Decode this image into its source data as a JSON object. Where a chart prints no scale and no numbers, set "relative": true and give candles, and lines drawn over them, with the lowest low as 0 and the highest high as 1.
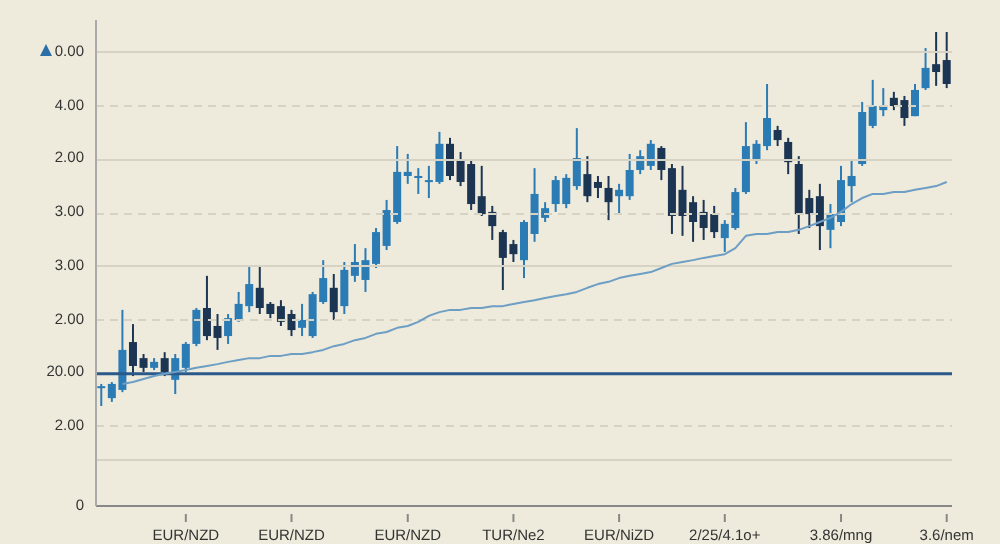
{
  "chart_data": {
    "type": "candlestick",
    "categories": [
      null,
      null,
      null,
      null,
      null,
      null,
      null,
      null,
      "EUR/NZD",
      null,
      null,
      null,
      null,
      null,
      null,
      null,
      null,
      null,
      "EUR/NZD",
      null,
      null,
      null,
      null,
      null,
      null,
      null,
      null,
      null,
      null,
      "EUR/NZD",
      null,
      null,
      null,
      null,
      null,
      null,
      null,
      null,
      null,
      "TUR/Ne2",
      null,
      null,
      null,
      null,
      null,
      null,
      null,
      null,
      null,
      "EUR/NiZD",
      null,
      null,
      null,
      null,
      null,
      null,
      null,
      null,
      null,
      "2/25/4.1o+",
      null,
      null,
      null,
      null,
      null,
      null,
      null,
      null,
      null,
      null,
      "3.86/mng",
      null,
      null,
      null,
      null,
      null,
      null,
      null,
      null,
      null,
      "3.6/nem"
    ],
    "relative": true,
    "annotations": [
      "0.00",
      "4.00",
      "2.00",
      "3.00",
      "3.00",
      "2.00",
      "20.00",
      "2.00",
      "0"
    ],
    "grid": "y",
    "series": [
      {
        "ohlc": [
          [
            0.048,
            0.059,
            0,
            0.053
          ],
          [
            0.021,
            0.064,
            0.011,
            0.059
          ],
          [
            0.043,
            0.257,
            0.037,
            0.15
          ],
          [
            0.171,
            0.219,
            0.08,
            0.107
          ],
          [
            0.128,
            0.139,
            0.091,
            0.102
          ],
          [
            0.102,
            0.128,
            0.096,
            0.118
          ],
          [
            0.128,
            0.144,
            0.08,
            0.091
          ],
          [
            0.07,
            0.139,
            0.032,
            0.128
          ],
          [
            0.102,
            0.171,
            0.091,
            0.166
          ],
          [
            0.166,
            0.262,
            0.16,
            0.257
          ],
          [
            0.262,
            0.348,
            0.176,
            0.187
          ],
          [
            0.214,
            0.246,
            0.15,
            0.182
          ],
          [
            0.187,
            0.246,
            0.166,
            0.235
          ],
          [
            0.23,
            0.305,
            0.225,
            0.273
          ],
          [
            0.267,
            0.374,
            0.251,
            0.326
          ],
          [
            0.316,
            0.374,
            0.246,
            0.262
          ],
          [
            0.273,
            0.278,
            0.235,
            0.246
          ],
          [
            0.267,
            0.283,
            0.214,
            0.225
          ],
          [
            0.246,
            0.257,
            0.187,
            0.203
          ],
          [
            0.209,
            0.273,
            0.187,
            0.23
          ],
          [
            0.187,
            0.305,
            0.182,
            0.299
          ],
          [
            0.278,
            0.39,
            0.273,
            0.342
          ],
          [
            0.316,
            0.353,
            0.23,
            0.251
          ],
          [
            0.267,
            0.385,
            0.246,
            0.364
          ],
          [
            0.348,
            0.433,
            0.332,
            0.385
          ],
          [
            0.337,
            0.422,
            0.305,
            0.39
          ],
          [
            0.38,
            0.476,
            0.369,
            0.465
          ],
          [
            0.428,
            0.551,
            0.417,
            0.524
          ],
          [
            0.492,
            0.695,
            0.487,
            0.626
          ],
          [
            0.615,
            0.674,
            0.594,
            0.626
          ],
          [
            0.61,
            0.636,
            0.567,
            0.615
          ],
          [
            0.599,
            0.642,
            0.556,
            0.604
          ],
          [
            0.599,
            0.733,
            0.594,
            0.701
          ],
          [
            0.701,
            0.717,
            0.604,
            0.615
          ],
          [
            0.658,
            0.679,
            0.588,
            0.599
          ],
          [
            0.647,
            0.658,
            0.524,
            0.54
          ],
          [
            0.561,
            0.642,
            0.508,
            0.513
          ],
          [
            0.519,
            0.535,
            0.444,
            0.481
          ],
          [
            0.465,
            0.471,
            0.31,
            0.396
          ],
          [
            0.433,
            0.444,
            0.385,
            0.406
          ],
          [
            0.39,
            0.497,
            0.342,
            0.492
          ],
          [
            0.46,
            0.636,
            0.439,
            0.567
          ],
          [
            0.503,
            0.545,
            0.492,
            0.529
          ],
          [
            0.54,
            0.615,
            0.519,
            0.604
          ],
          [
            0.54,
            0.62,
            0.529,
            0.61
          ],
          [
            0.588,
            0.743,
            0.578,
            0.663
          ],
          [
            0.62,
            0.668,
            0.545,
            0.561
          ],
          [
            0.599,
            0.615,
            0.556,
            0.583
          ],
          [
            0.583,
            0.615,
            0.497,
            0.545
          ],
          [
            0.561,
            0.594,
            0.513,
            0.578
          ],
          [
            0.561,
            0.674,
            0.551,
            0.631
          ],
          [
            0.631,
            0.684,
            0.62,
            0.668
          ],
          [
            0.642,
            0.711,
            0.631,
            0.701
          ],
          [
            0.69,
            0.695,
            0.604,
            0.631
          ],
          [
            0.636,
            0.647,
            0.46,
            0.508
          ],
          [
            0.578,
            0.642,
            0.455,
            0.508
          ],
          [
            0.545,
            0.561,
            0.439,
            0.492
          ],
          [
            0.519,
            0.551,
            0.444,
            0.476
          ],
          [
            0.513,
            0.535,
            0.449,
            0.465
          ],
          [
            0.449,
            0.497,
            0.412,
            0.487
          ],
          [
            0.476,
            0.583,
            0.471,
            0.572
          ],
          [
            0.572,
            0.759,
            0.567,
            0.695
          ],
          [
            0.658,
            0.711,
            0.647,
            0.701
          ],
          [
            0.695,
            0.861,
            0.684,
            0.77
          ],
          [
            0.738,
            0.749,
            0.695,
            0.711
          ],
          [
            0.706,
            0.717,
            0.62,
            0.652
          ],
          [
            0.647,
            0.668,
            0.46,
            0.513
          ],
          [
            0.556,
            0.578,
            0.476,
            0.513
          ],
          [
            0.561,
            0.594,
            0.417,
            0.481
          ],
          [
            0.471,
            0.54,
            0.422,
            0.513
          ],
          [
            0.492,
            0.642,
            0.481,
            0.604
          ],
          [
            0.588,
            0.658,
            0.545,
            0.615
          ],
          [
            0.647,
            0.813,
            0.642,
            0.786
          ],
          [
            0.749,
            0.872,
            0.743,
            0.802
          ],
          [
            0.791,
            0.85,
            0.775,
            0.802
          ],
          [
            0.824,
            0.84,
            0.791,
            0.802
          ],
          [
            0.818,
            0.829,
            0.749,
            0.77
          ],
          [
            0.775,
            0.861,
            0.775,
            0.845
          ],
          [
            0.85,
            0.957,
            0.845,
            0.904
          ],
          [
            0.914,
            1,
            0.856,
            0.893
          ],
          [
            0.925,
            1,
            0.85,
            0.861
          ]
        ],
        "colors": [
          "#2b7bb5",
          "#2b7bb5",
          "#2b7bb5",
          "#1c3552",
          "#1c3552",
          "#2b7bb5",
          "#1c3552",
          "#2b7bb5",
          "#2b7bb5",
          "#2b7bb5",
          "#1c3552",
          "#1c3552",
          "#2b7bb5",
          "#2b7bb5",
          "#2b7bb5",
          "#1c3552",
          "#1c3552",
          "#1c3552",
          "#1c3552",
          "#2b7bb5",
          "#2b7bb5",
          "#2b7bb5",
          "#1c3552",
          "#2b7bb5",
          "#2b7bb5",
          "#2b7bb5",
          "#2b7bb5",
          "#2b7bb5",
          "#2b7bb5",
          "#2b7bb5",
          "#2b7bb5",
          "#2b7bb5",
          "#2b7bb5",
          "#1c3552",
          "#1c3552",
          "#1c3552",
          "#1c3552",
          "#1c3552",
          "#1c3552",
          "#1c3552",
          "#2b7bb5",
          "#2b7bb5",
          "#2b7bb5",
          "#2b7bb5",
          "#2b7bb5",
          "#2b7bb5",
          "#1c3552",
          "#1c3552",
          "#1c3552",
          "#2b7bb5",
          "#2b7bb5",
          "#2b7bb5",
          "#2b7bb5",
          "#1c3552",
          "#1c3552",
          "#1c3552",
          "#1c3552",
          "#1c3552",
          "#1c3552",
          "#2b7bb5",
          "#2b7bb5",
          "#2b7bb5",
          "#2b7bb5",
          "#2b7bb5",
          "#1c3552",
          "#1c3552",
          "#1c3552",
          "#1c3552",
          "#1c3552",
          "#2b7bb5",
          "#2b7bb5",
          "#2b7bb5",
          "#2b7bb5",
          "#2b7bb5",
          "#2b7bb5",
          "#1c3552",
          "#1c3552",
          "#2b7bb5",
          "#2b7bb5",
          "#1c3552",
          "#1c3552"
        ]
      },
      {
        "type": "line",
        "color": "#6d9ec4",
        "marker": "none",
        "values": [
          null,
          null,
          0.059,
          0.064,
          0.072,
          0.08,
          0.086,
          0.091,
          0.096,
          0.102,
          0.107,
          0.112,
          0.118,
          0.123,
          0.128,
          0.128,
          0.134,
          0.134,
          0.139,
          0.139,
          0.144,
          0.15,
          0.16,
          0.166,
          0.176,
          0.182,
          0.193,
          0.198,
          0.209,
          0.214,
          0.225,
          0.241,
          0.251,
          0.257,
          0.257,
          0.262,
          0.262,
          0.267,
          0.267,
          0.273,
          0.278,
          0.283,
          0.289,
          0.294,
          0.299,
          0.305,
          0.316,
          0.326,
          0.332,
          0.342,
          0.348,
          0.353,
          0.358,
          0.369,
          0.38,
          0.385,
          0.39,
          0.396,
          0.401,
          0.406,
          0.422,
          0.455,
          0.46,
          0.46,
          0.465,
          0.465,
          0.471,
          0.481,
          0.492,
          0.503,
          0.519,
          0.54,
          0.556,
          0.567,
          0.567,
          0.572,
          0.572,
          0.578,
          0.583,
          0.588,
          0.599
        ]
      }
    ],
    "ref_lines": [
      {
        "axis": "y",
        "value": 0.086,
        "color": "#2b5a8a"
      }
    ]
  }
}
